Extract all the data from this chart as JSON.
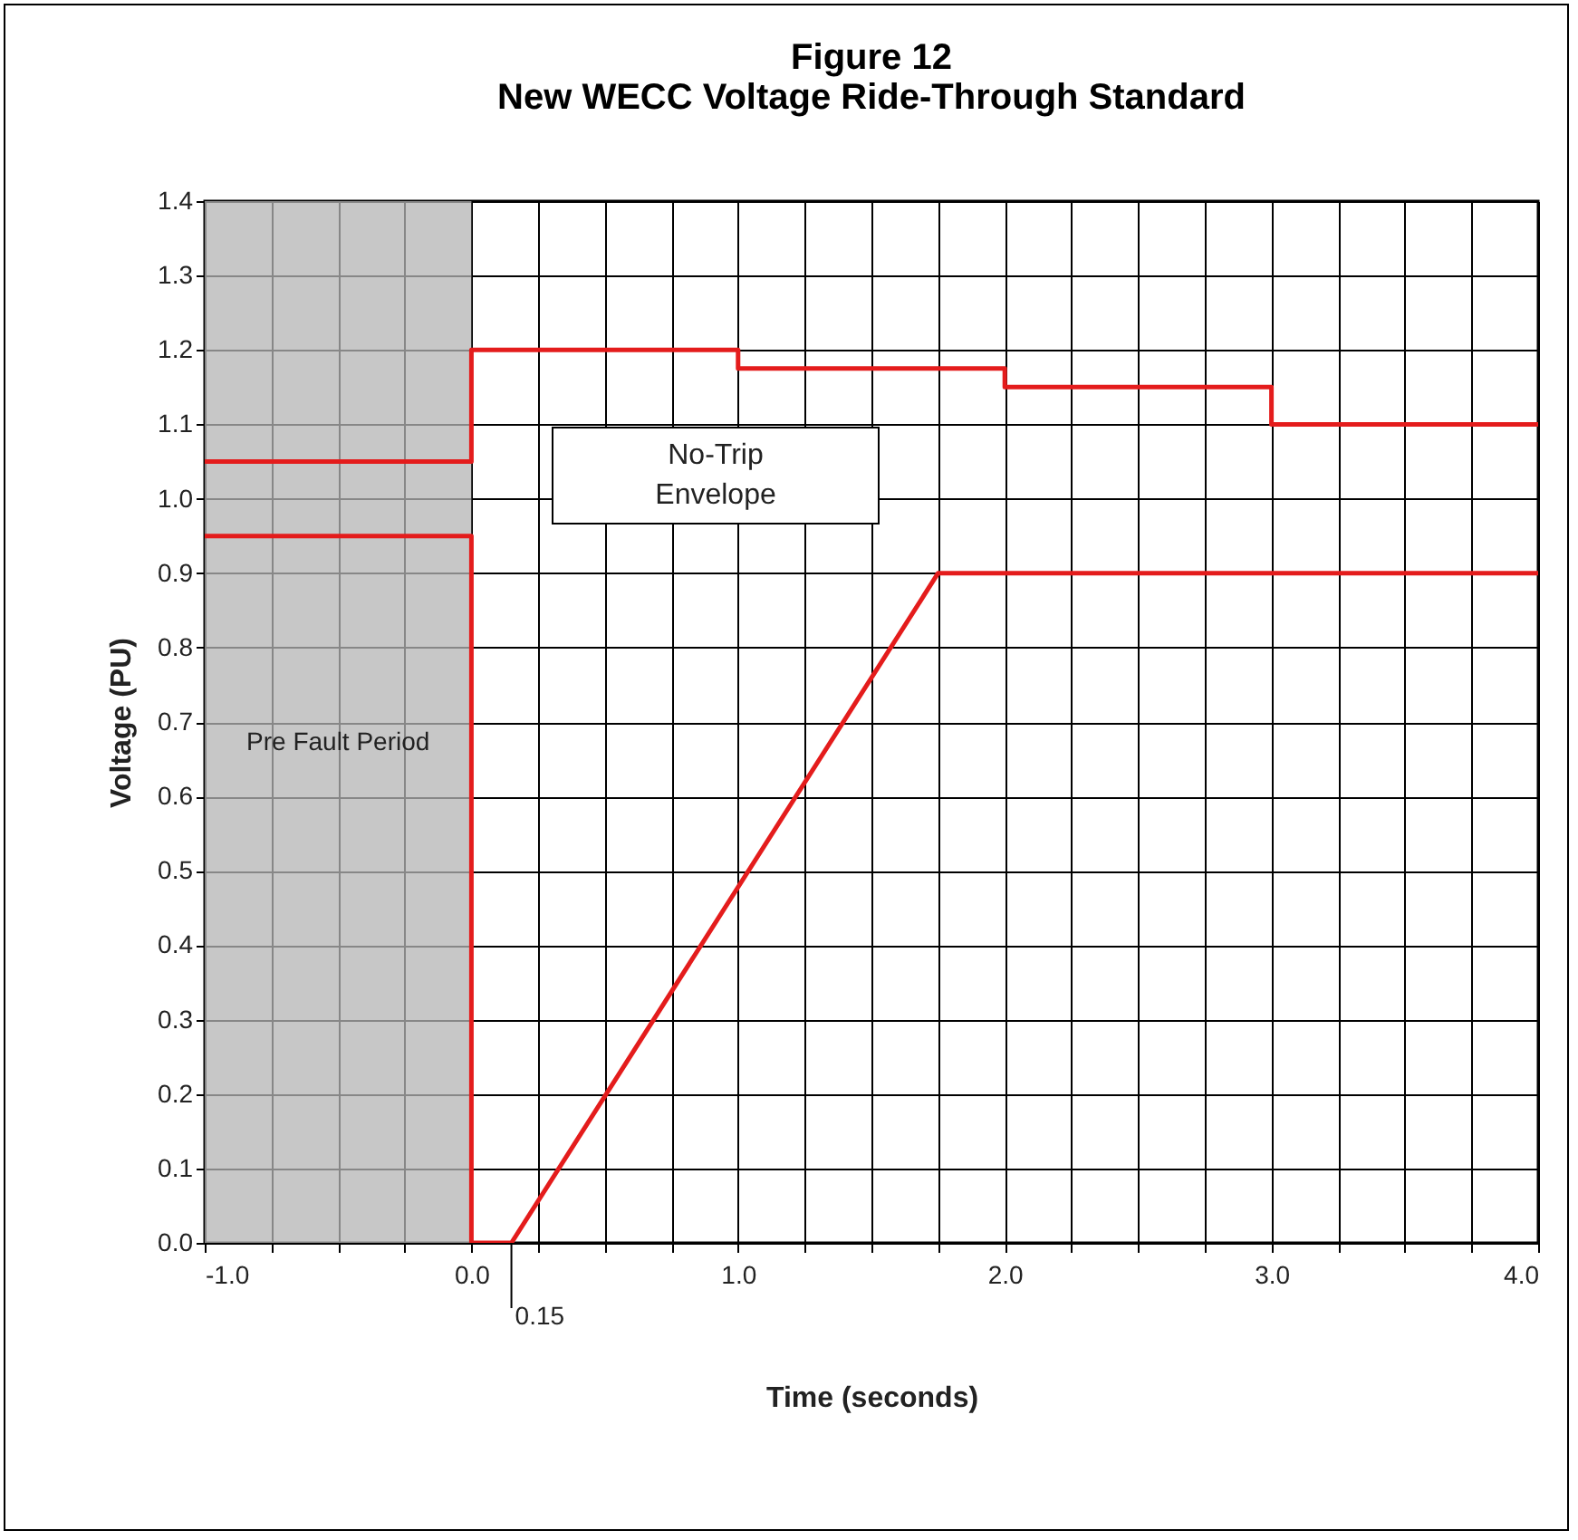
{
  "chart_data": {
    "type": "line",
    "title": "Figure 12",
    "subtitle": "New WECC Voltage Ride-Through Standard",
    "xlabel": "Time (seconds)",
    "ylabel": "Voltage (PU)",
    "series": [
      {
        "color": "#e41c1c",
        "x": [
          -1,
          0,
          0,
          1,
          1,
          2,
          2,
          3,
          3,
          4
        ],
        "values": [
          1.05,
          1.05,
          1.2,
          1.2,
          1.175,
          1.175,
          1.15,
          1.15,
          1.1,
          1.1
        ]
      },
      {
        "color": "#e41c1c",
        "x": [
          -1,
          0,
          0,
          0.15,
          1.75,
          4
        ],
        "values": [
          0.95,
          0.95,
          0,
          0,
          0.9,
          0.9
        ]
      }
    ],
    "xlim": [
      -1,
      4
    ],
    "xticks": [
      {
        "value": -1,
        "label": "-1.0"
      },
      {
        "value": -0.75,
        "label": null
      },
      {
        "value": -0.5,
        "label": null
      },
      {
        "value": -0.25,
        "label": null
      },
      {
        "value": 0,
        "label": "0.0"
      },
      {
        "value": 0.25,
        "label": null
      },
      {
        "value": 0.5,
        "label": null
      },
      {
        "value": 0.75,
        "label": null
      },
      {
        "value": 1,
        "label": "1.0"
      },
      {
        "value": 1.25,
        "label": null
      },
      {
        "value": 1.5,
        "label": null
      },
      {
        "value": 1.75,
        "label": null
      },
      {
        "value": 2,
        "label": "2.0"
      },
      {
        "value": 2.25,
        "label": null
      },
      {
        "value": 2.5,
        "label": null
      },
      {
        "value": 2.75,
        "label": null
      },
      {
        "value": 3,
        "label": "3.0"
      },
      {
        "value": 3.25,
        "label": null
      },
      {
        "value": 3.5,
        "label": null
      },
      {
        "value": 3.75,
        "label": null
      },
      {
        "value": 4,
        "label": "4.0"
      }
    ],
    "ylim": [
      0,
      1.4
    ],
    "yticks": [
      {
        "value": 0,
        "label": "0.0"
      },
      {
        "value": 0.1,
        "label": "0.1"
      },
      {
        "value": 0.2,
        "label": "0.2"
      },
      {
        "value": 0.3,
        "label": "0.3"
      },
      {
        "value": 0.4,
        "label": "0.4"
      },
      {
        "value": 0.5,
        "label": "0.5"
      },
      {
        "value": 0.6,
        "label": "0.6"
      },
      {
        "value": 0.7,
        "label": "0.7"
      },
      {
        "value": 0.8,
        "label": "0.8"
      },
      {
        "value": 0.9,
        "label": "0.9"
      },
      {
        "value": 1,
        "label": "1.0"
      },
      {
        "value": 1.1,
        "label": "1.1"
      },
      {
        "value": 1.2,
        "label": "1.2"
      },
      {
        "value": 1.3,
        "label": "1.3"
      },
      {
        "value": 1.4,
        "label": "1.4"
      }
    ],
    "bands": [
      {
        "axis": "x",
        "from": -1,
        "to": 0,
        "label": "Pre Fault Period",
        "color": "#b4b4b4"
      }
    ],
    "annotations": [
      "No-Trip Envelope",
      {
        "text": "0.15",
        "x": 0.15,
        "y": 0
      }
    ],
    "grid": true,
    "line_style": "solid",
    "marker": "none"
  }
}
